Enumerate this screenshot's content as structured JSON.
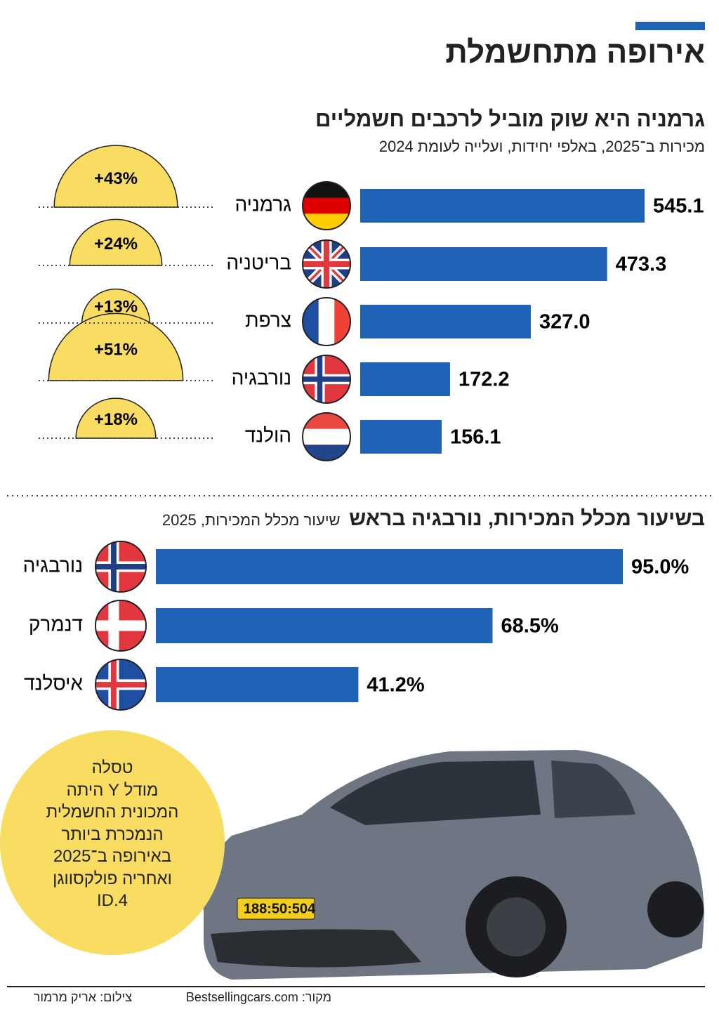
{
  "title": "אירופה מתחשמלת",
  "chart_data": [
    {
      "type": "bar",
      "orientation": "horizontal",
      "title": "גרמניה היא שוק מוביל לרכבים חשמליים",
      "subtitle": "מכירות ב־2025, באלפי יחידות, ועלייה לעומת 2024",
      "categories": [
        "גרמניה",
        "בריטניה",
        "צרפת",
        "נורבגיה",
        "הולנד"
      ],
      "values": [
        545.1,
        473.3,
        327.0,
        172.2,
        156.1
      ],
      "value_labels": [
        "545.1",
        "473.3",
        "327.0",
        "172.2",
        "156.1"
      ],
      "color": "#1e63b5",
      "growth": {
        "values": [
          43,
          24,
          13,
          51,
          18
        ],
        "value_labels": [
          "+43%",
          "+24%",
          "+13%",
          "+51%",
          "+18%"
        ],
        "color": "#f8dd62"
      }
    },
    {
      "type": "bar",
      "orientation": "horizontal",
      "title": "בשיעור מכלל המכירות, נורבגיה בראש",
      "subtitle": "שיעור מכלל המכירות, 2025",
      "categories": [
        "נורבגיה",
        "דנמרק",
        "איסלנד"
      ],
      "values": [
        95.0,
        68.5,
        41.2
      ],
      "value_labels": [
        "95.0%",
        "68.5%",
        "41.2%"
      ],
      "color": "#1e63b5"
    }
  ],
  "callout": [
    "טסלה",
    "מודל Y היתה",
    "המכונית החשמלית",
    "הנמכרת ביותר",
    "באירופה ב־2025",
    "ואחריה פולקסווגן",
    "ID.4"
  ],
  "license_plate": "188:50:504",
  "footer": {
    "source": "מקור: Bestsellingcars.com",
    "photo": "צילום: אריק מרמור"
  }
}
